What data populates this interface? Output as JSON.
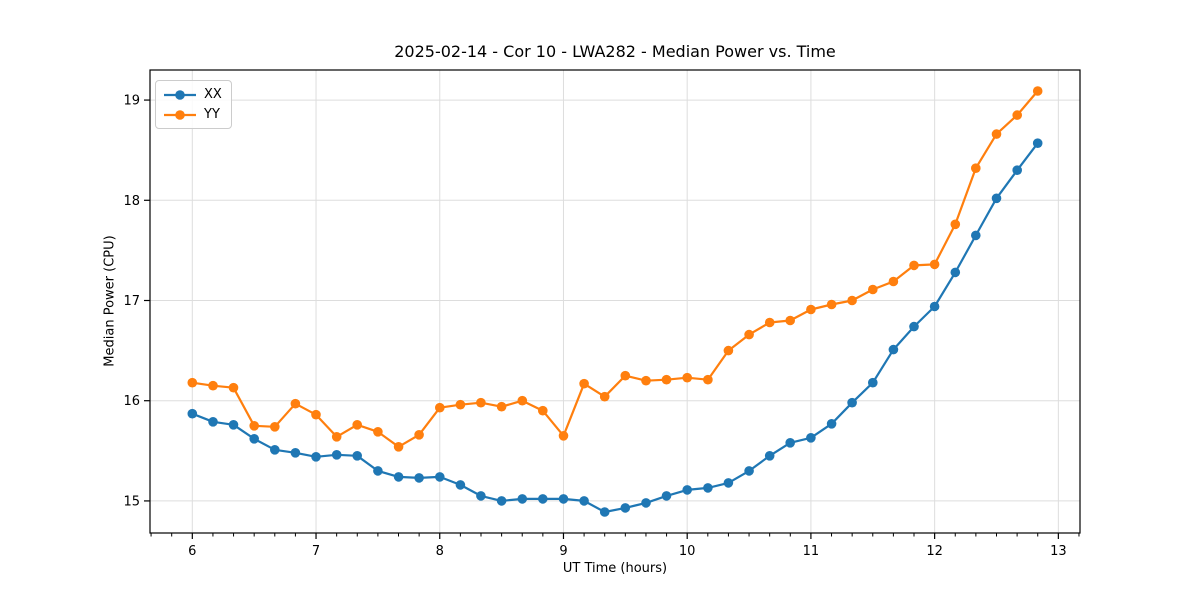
{
  "chart_data": {
    "type": "line",
    "title": "2025-02-14 - Cor 10 - LWA282 - Median Power vs. Time",
    "xlabel": "UT Time (hours)",
    "ylabel": "Median Power (CPU)",
    "xlim": [
      5.658,
      13.175
    ],
    "ylim": [
      14.68,
      19.3
    ],
    "x_ticks": [
      6,
      7,
      8,
      9,
      10,
      11,
      12,
      13
    ],
    "y_ticks": [
      15,
      16,
      17,
      18,
      19
    ],
    "x_minor_step_minutes": 10,
    "grid": true,
    "legend_position": "upper left",
    "marker": "circle",
    "x": [
      6,
      6.167,
      6.333,
      6.5,
      6.667,
      6.833,
      7,
      7.167,
      7.333,
      7.5,
      7.667,
      7.833,
      8,
      8.167,
      8.333,
      8.5,
      8.667,
      8.833,
      9,
      9.167,
      9.333,
      9.5,
      9.667,
      9.833,
      10,
      10.167,
      10.333,
      10.5,
      10.667,
      10.833,
      11,
      11.167,
      11.333,
      11.5,
      11.667,
      11.833,
      12,
      12.167,
      12.333,
      12.5,
      12.667,
      12.833
    ],
    "series": [
      {
        "name": "XX",
        "color": "#1f77b4",
        "values": [
          15.87,
          15.79,
          15.76,
          15.62,
          15.51,
          15.48,
          15.44,
          15.46,
          15.45,
          15.3,
          15.24,
          15.23,
          15.24,
          15.16,
          15.05,
          15.0,
          15.02,
          15.02,
          15.02,
          15.0,
          14.89,
          14.93,
          14.98,
          15.05,
          15.11,
          15.13,
          15.18,
          15.3,
          15.45,
          15.58,
          15.63,
          15.77,
          15.98,
          16.18,
          16.51,
          16.74,
          16.94,
          17.28,
          17.65,
          18.02,
          18.3,
          18.57
        ]
      },
      {
        "name": "YY",
        "color": "#ff7f0e",
        "values": [
          16.18,
          16.15,
          16.13,
          15.75,
          15.74,
          15.97,
          15.86,
          15.64,
          15.76,
          15.69,
          15.54,
          15.66,
          15.93,
          15.96,
          15.98,
          15.94,
          16.0,
          15.9,
          15.65,
          16.17,
          16.04,
          16.25,
          16.2,
          16.21,
          16.23,
          16.21,
          16.5,
          16.66,
          16.78,
          16.8,
          16.91,
          16.96,
          17.0,
          17.11,
          17.19,
          17.35,
          17.36,
          17.76,
          18.32,
          18.66,
          18.85,
          19.09
        ]
      }
    ],
    "style": {
      "grid_color": "#dddddd",
      "spine_color": "#000000",
      "tick_color": "#000000",
      "background": "#ffffff",
      "line_width": 2.2,
      "marker_radius": 4.8
    }
  }
}
